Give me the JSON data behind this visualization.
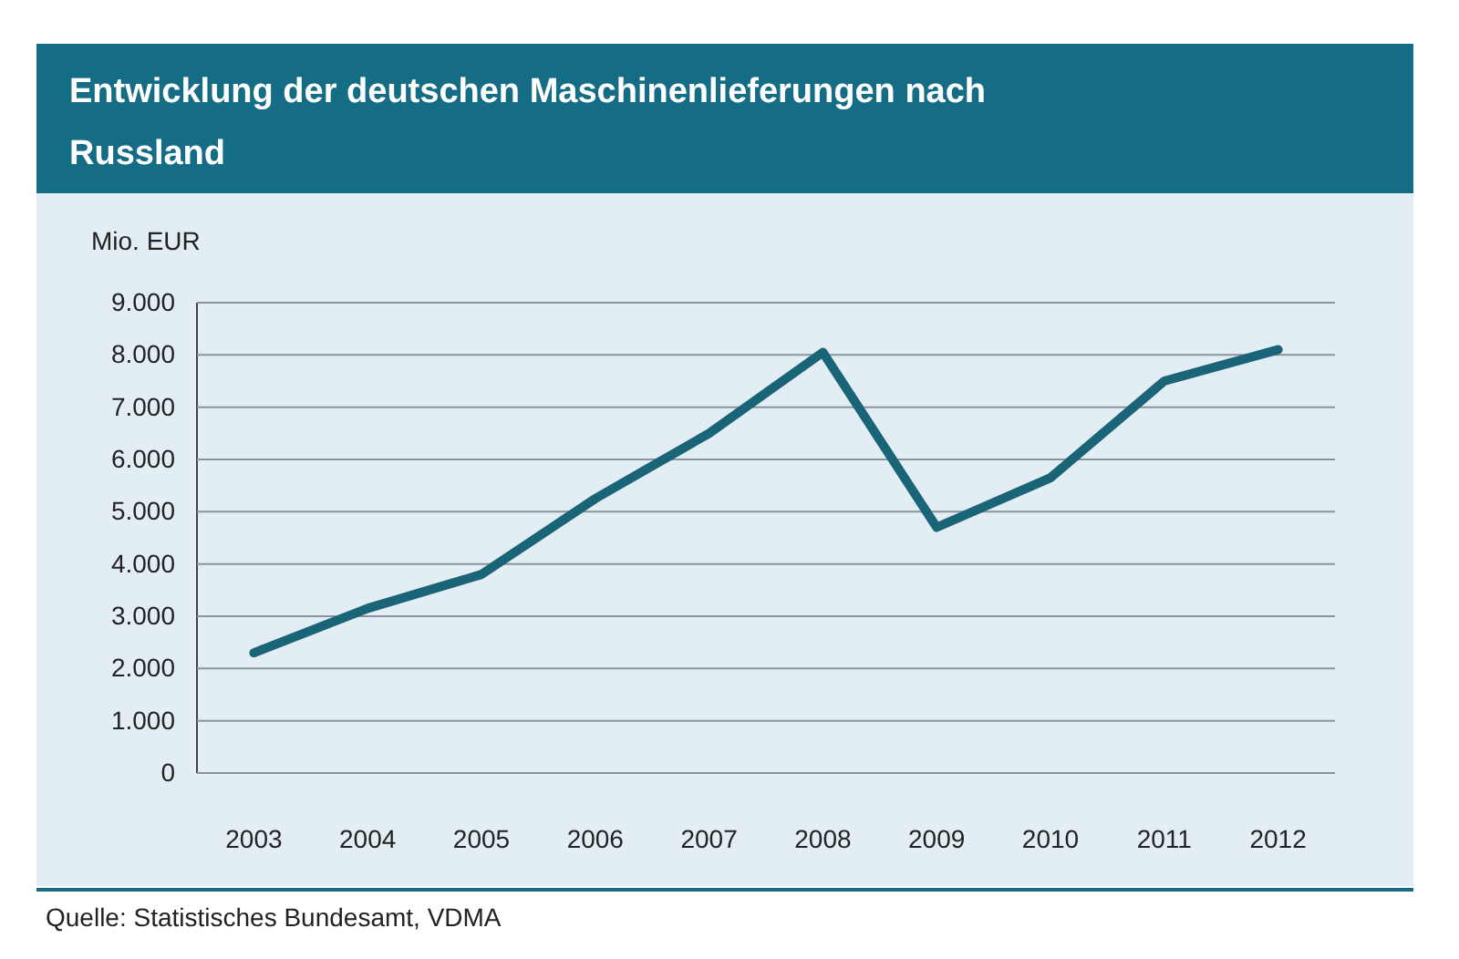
{
  "chart_data": {
    "type": "line",
    "title": "Entwicklung der deutschen Maschinenlieferungen nach Russland",
    "ylabel": "Mio. EUR",
    "categories": [
      "2003",
      "2004",
      "2005",
      "2006",
      "2007",
      "2008",
      "2009",
      "2010",
      "2011",
      "2012"
    ],
    "series": [
      {
        "color": "#1a6478",
        "values": [
          2300,
          3150,
          3800,
          5250,
          6500,
          8050,
          4700,
          5650,
          7500,
          8100
        ]
      }
    ],
    "ylim": [
      0,
      9000
    ],
    "yticks": [
      0,
      {
        "value": 1000,
        "label": "1.000"
      },
      {
        "value": 2000,
        "label": "2.000"
      },
      {
        "value": 3000,
        "label": "3.000"
      },
      {
        "value": 4000,
        "label": "4.000"
      },
      {
        "value": 5000,
        "label": "5.000"
      },
      {
        "value": 6000,
        "label": "6.000"
      },
      {
        "value": 7000,
        "label": "7.000"
      },
      {
        "value": 8000,
        "label": "8.000"
      },
      {
        "value": 9000,
        "label": "9.000"
      }
    ],
    "grid": "y",
    "marker": "none",
    "line_style": "solid",
    "annotations": [
      "Quelle: Statistisches Bundesamt, VDMA"
    ]
  }
}
